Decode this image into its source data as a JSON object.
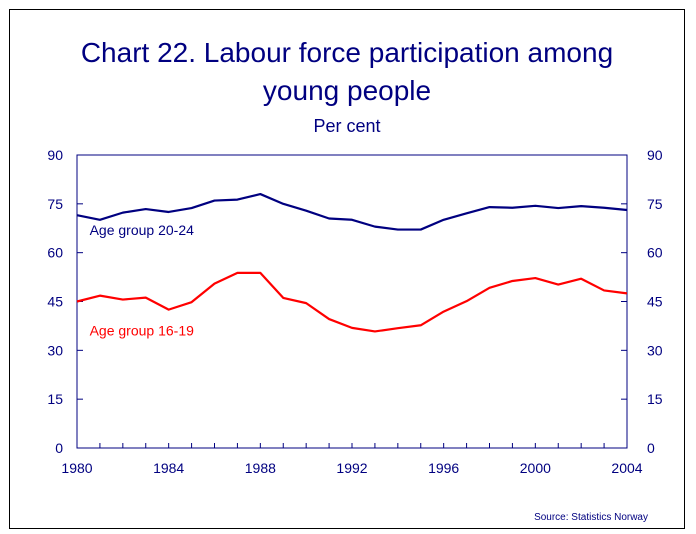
{
  "title_line1": "Chart 22. Labour force participation among",
  "title_line2": "young people",
  "subtitle": "Per cent",
  "source": "Source: Statistics Norway",
  "chart_data": {
    "type": "line",
    "title": "Chart 22. Labour force participation among young people",
    "ylabel": "Per cent",
    "xlabel": "",
    "xlim": [
      1980,
      2004
    ],
    "ylim": [
      0,
      90
    ],
    "x_ticks": [
      1980,
      1984,
      1988,
      1992,
      1996,
      2000,
      2004
    ],
    "y_ticks": [
      0,
      15,
      30,
      45,
      60,
      75,
      90
    ],
    "dual_y_axis": true,
    "grid": false,
    "colors": {
      "axis": "#000080",
      "series_20_24": "#000080",
      "series_16_19": "#ff0000"
    },
    "x": [
      1980,
      1981,
      1982,
      1983,
      1984,
      1985,
      1986,
      1987,
      1988,
      1989,
      1990,
      1991,
      1992,
      1993,
      1994,
      1995,
      1996,
      1997,
      1998,
      1999,
      2000,
      2001,
      2002,
      2003,
      2004
    ],
    "series": [
      {
        "name": "Age group 20-24",
        "values": [
          71.5,
          70.1,
          72.3,
          73.4,
          72.5,
          73.7,
          76.0,
          76.3,
          78.0,
          75.0,
          72.9,
          70.5,
          70.1,
          68.0,
          67.1,
          67.1,
          70.1,
          72.1,
          74.0,
          73.8,
          74.4,
          73.7,
          74.3,
          73.8,
          73.1
        ]
      },
      {
        "name": "Age group 16-19",
        "values": [
          45.0,
          46.8,
          45.6,
          46.2,
          42.5,
          44.8,
          50.5,
          53.8,
          53.8,
          46.1,
          44.5,
          39.6,
          36.9,
          35.8,
          36.8,
          37.7,
          41.9,
          45.1,
          49.2,
          51.3,
          52.2,
          50.2,
          52.0,
          48.4,
          47.5
        ]
      }
    ]
  }
}
